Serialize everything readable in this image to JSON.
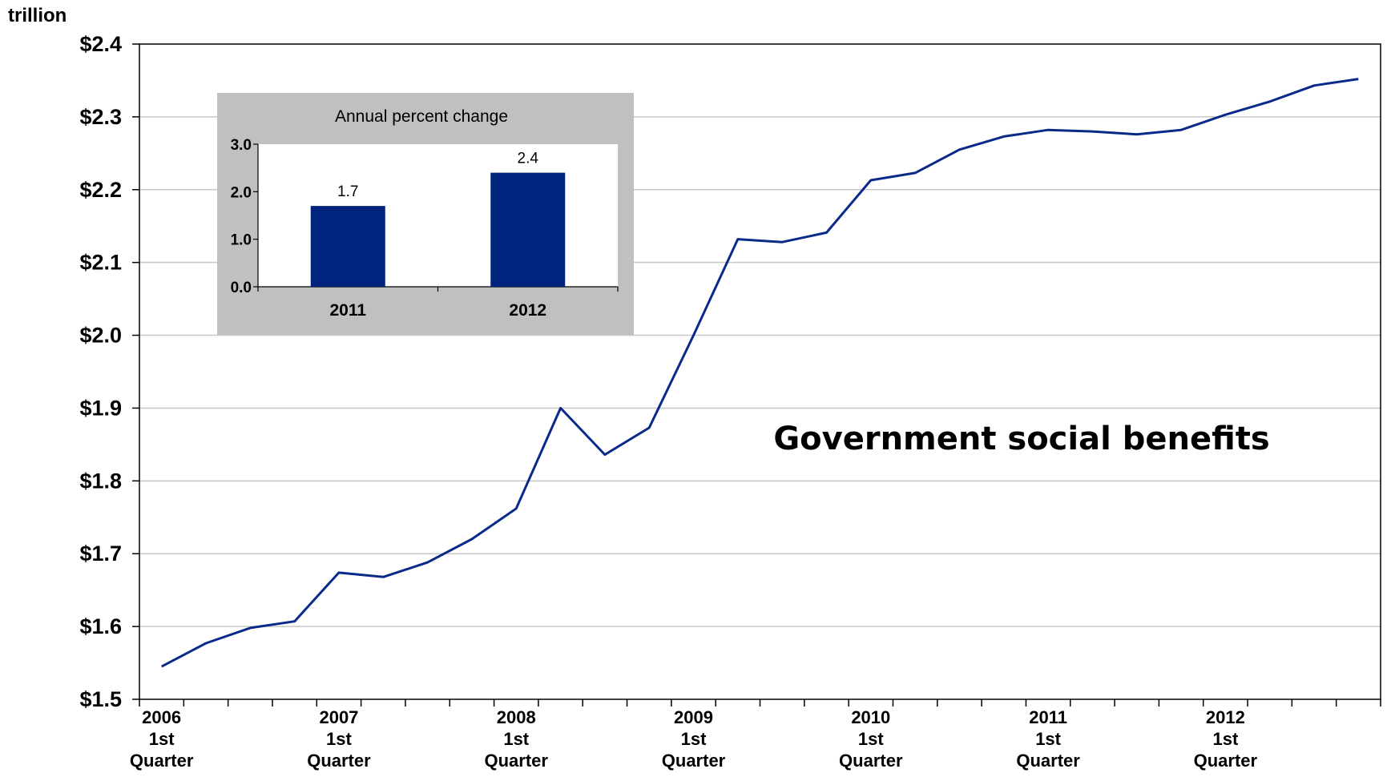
{
  "chart_data": {
    "type": "line",
    "unit_label": "trillion",
    "annotation": "Government social benefits",
    "ylim": [
      1.5,
      2.4
    ],
    "y_ticks": [
      "$1.5",
      "$1.6",
      "$1.7",
      "$1.8",
      "$1.9",
      "$2.0",
      "$2.1",
      "$2.2",
      "$2.3",
      "$2.4"
    ],
    "y_tick_values": [
      1.5,
      1.6,
      1.7,
      1.8,
      1.9,
      2.0,
      2.1,
      2.2,
      2.3,
      2.4
    ],
    "x_tick_labels": [
      {
        "year": "2006",
        "line2": "1st",
        "line3": "Quarter"
      },
      {
        "year": "2007",
        "line2": "1st",
        "line3": "Quarter"
      },
      {
        "year": "2008",
        "line2": "1st",
        "line3": "Quarter"
      },
      {
        "year": "2009",
        "line2": "1st",
        "line3": "Quarter"
      },
      {
        "year": "2010",
        "line2": "1st",
        "line3": "Quarter"
      },
      {
        "year": "2011",
        "line2": "1st",
        "line3": "Quarter"
      },
      {
        "year": "2012",
        "line2": "1st",
        "line3": "Quarter"
      }
    ],
    "grid": true,
    "line_color": "#0a2a8a",
    "series": [
      {
        "x": [
          "2006Q1",
          "2006Q2",
          "2006Q3",
          "2006Q4",
          "2007Q1",
          "2007Q2",
          "2007Q3",
          "2007Q4",
          "2008Q1",
          "2008Q2",
          "2008Q3",
          "2008Q4",
          "2009Q1",
          "2009Q2",
          "2009Q3",
          "2009Q4",
          "2010Q1",
          "2010Q2",
          "2010Q3",
          "2010Q4",
          "2011Q1",
          "2011Q2",
          "2011Q3",
          "2011Q4",
          "2012Q1",
          "2012Q2",
          "2012Q3",
          "2012Q4"
        ],
        "values": [
          1.545,
          1.577,
          1.598,
          1.607,
          1.674,
          1.668,
          1.688,
          1.72,
          1.762,
          1.9,
          1.836,
          1.873,
          2.0,
          2.132,
          2.128,
          2.141,
          2.213,
          2.223,
          2.255,
          2.273,
          2.282,
          2.28,
          2.276,
          2.282,
          2.303,
          2.321,
          2.343,
          2.352
        ]
      }
    ],
    "inset": {
      "type": "bar",
      "title": "Annual percent change",
      "categories": [
        "2011",
        "2012"
      ],
      "values": [
        1.7,
        2.4
      ],
      "value_labels": [
        "1.7",
        "2.4"
      ],
      "ylim": [
        0,
        3.0
      ],
      "y_ticks": [
        "0.0",
        "1.0",
        "2.0",
        "3.0"
      ],
      "y_tick_values": [
        0,
        1,
        2,
        3
      ],
      "bar_color": "#00237d",
      "panel_color": "#c0c0c0"
    }
  }
}
